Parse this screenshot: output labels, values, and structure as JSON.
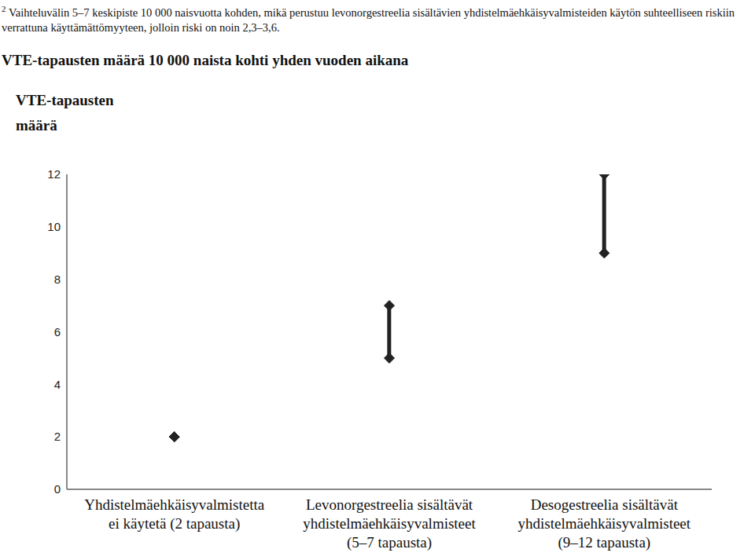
{
  "chart_data": {
    "type": "range",
    "footnote_mark": "2",
    "footnote": "Vaihteluvälin 5–7 keskipiste 10 000 naisvuotta kohden, mikä perustuu levonorgestreelia sisältävien yhdistelmäehkäisyvalmisteiden käytön suhteelliseen riskiin verrattuna käyttämättömyyteen, jolloin riski on noin 2,3–3,6.",
    "title": "VTE-tapausten määrä 10 000 naista kohti yhden vuoden aikana",
    "y_label": "VTE-tapausten määrä",
    "categories": [
      "Yhdistelmäehkäisyvalmistetta ei käytetä (2 tapausta)",
      "Levonorgestreelia sisältävät yhdistelmäehkäisyvalmisteet (5–7 tapausta)",
      "Desogestreelia sisältävät yhdistelmäehkäisyvalmisteet (9–12 tapausta)"
    ],
    "low": [
      2,
      5,
      9
    ],
    "high": [
      2,
      7,
      12
    ],
    "color": "#222222",
    "marker": "diamond",
    "ylim": [
      0,
      12
    ],
    "yticks": [
      0,
      2,
      4,
      6,
      8,
      10,
      12
    ],
    "grid": false
  }
}
